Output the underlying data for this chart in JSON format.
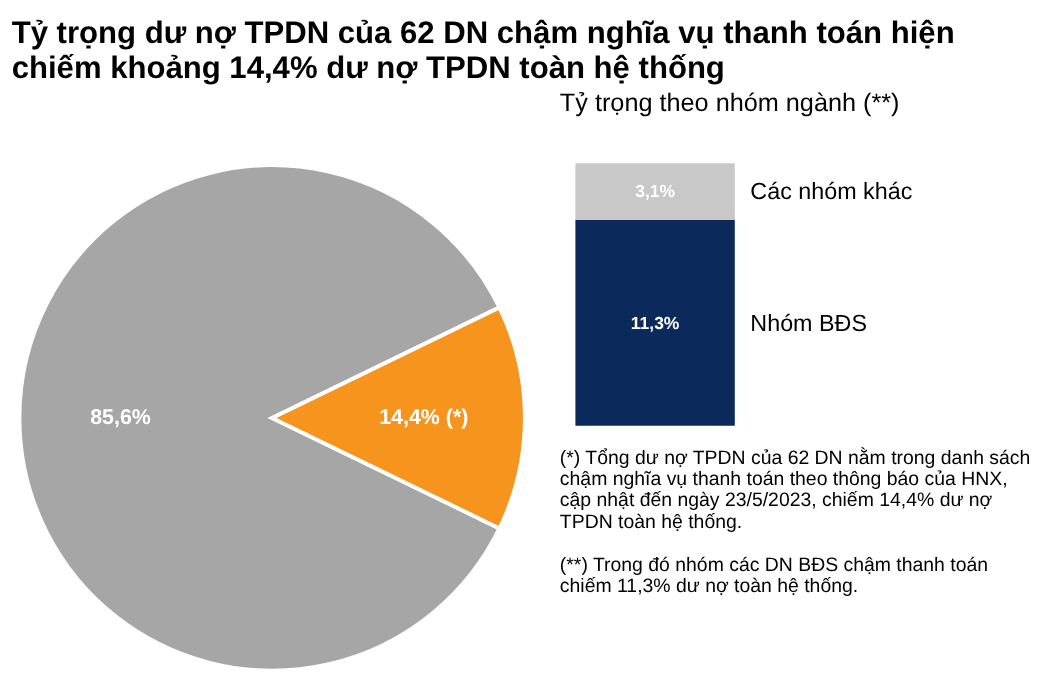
{
  "chart_data": [
    {
      "type": "pie",
      "title": "Tỷ trọng dư nợ TPDN của 62 DN chậm nghĩa vụ thanh toán hiện chiếm khoảng 14,4% dư nợ TPDN toàn hệ thống",
      "categories": [
        null,
        null
      ],
      "values": [
        85.6,
        14.4
      ],
      "colors": [
        "#a6a6a6",
        "#f7941d"
      ],
      "value_labels": [
        "85,6%",
        "14,4% (*)"
      ],
      "legend": false
    },
    {
      "type": "bar",
      "stacked": true,
      "title": "Tỷ trọng theo nhóm ngành (**)",
      "categories": [
        null
      ],
      "series": [
        {
          "name": "Nhóm BĐS",
          "color": "#0b2a5b",
          "values": [
            11.3
          ],
          "value_labels": [
            "11,3%"
          ]
        },
        {
          "name": "Các nhóm khác",
          "color": "#c8c8c8",
          "values": [
            3.1
          ],
          "value_labels": [
            "3,1%"
          ]
        }
      ],
      "annotations": [
        "(*) Tổng dư nợ TPDN của 62 DN nằm trong danh sách chậm nghĩa vụ thanh toán theo thông báo của HNX, cập nhật đến ngày 23/5/2023, chiếm 14,4% dư nợ TPDN toàn hệ thống.",
        "(**) Trong đó nhóm các DN BĐS chậm thanh toán chiếm 11,3% dư nợ toàn hệ thống."
      ]
    }
  ]
}
